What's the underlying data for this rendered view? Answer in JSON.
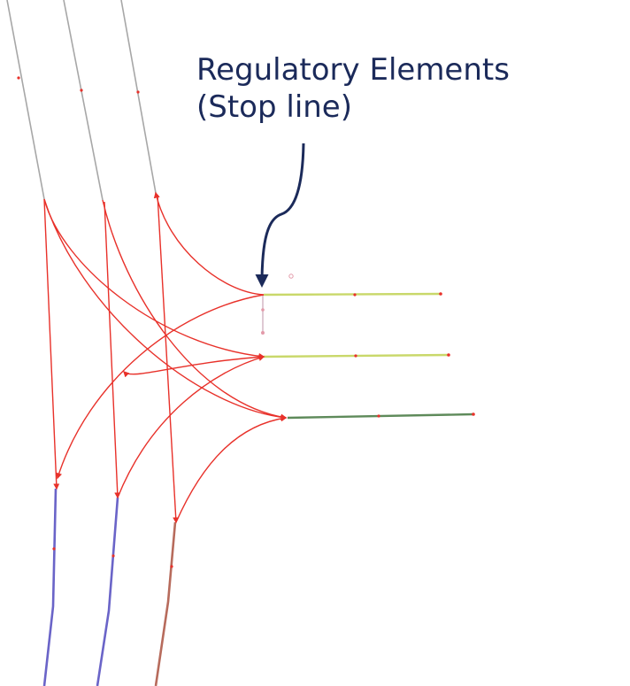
{
  "annotation": {
    "line1": "Regulatory Elements",
    "line2": "(Stop line)"
  },
  "colors": {
    "text": "#1b2a5a",
    "lanelet_connector": "#e8312a",
    "road_incoming": "#a7a7a7",
    "lane_outgoing": "#6a64c8",
    "lane_brown": "#b76b5c",
    "lane_yellow": "#c9d86a",
    "lane_green": "#5e8a5a",
    "stop_line": "#d4b7c4",
    "arrow_callout": "#1b2a5a"
  },
  "lanes": [
    {
      "name": "incoming-left-road",
      "type": "road_incoming"
    },
    {
      "name": "incoming-middle-road",
      "type": "road_incoming"
    },
    {
      "name": "incoming-right-road",
      "type": "road_incoming"
    },
    {
      "name": "outgoing-left-lane",
      "type": "lane_outgoing"
    },
    {
      "name": "outgoing-middle-lane",
      "type": "lane_outgoing"
    },
    {
      "name": "outgoing-right-lane",
      "type": "lane_brown"
    },
    {
      "name": "side-top-lane",
      "type": "lane_yellow"
    },
    {
      "name": "side-middle-lane",
      "type": "lane_yellow"
    },
    {
      "name": "side-bottom-lane",
      "type": "lane_green"
    }
  ]
}
